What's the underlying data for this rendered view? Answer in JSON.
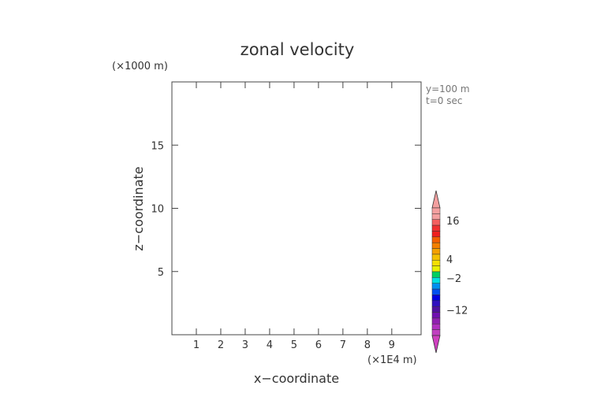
{
  "chart_data": {
    "type": "heatmap",
    "title": "zonal velocity",
    "xlabel": "x−coordinate",
    "ylabel": "z−coordinate",
    "x_unit": "(×1E4 m)",
    "y_unit": "(×1000 m)",
    "xlim": [
      0,
      10.2
    ],
    "ylim": [
      0,
      20.0
    ],
    "x_ticks": [
      1,
      2,
      3,
      4,
      5,
      6,
      7,
      8,
      9
    ],
    "y_ticks": [
      5,
      10,
      15
    ],
    "annotations": [
      "y=100 m",
      "t=0 sec"
    ],
    "colorbar": {
      "labels": [
        {
          "value": 16,
          "text": "16"
        },
        {
          "value": 4,
          "text": "4"
        },
        {
          "value": -2,
          "text": "−2"
        },
        {
          "value": -12,
          "text": "−12"
        }
      ],
      "top_color": "#f4a0a0",
      "bottom_color": "#d040c0",
      "segments": [
        {
          "color": "#f4a0a0"
        },
        {
          "color": "#f4a0a0"
        },
        {
          "color": "#f46060"
        },
        {
          "color": "#f03030"
        },
        {
          "color": "#f02020"
        },
        {
          "color": "#f46000"
        },
        {
          "color": "#f48000"
        },
        {
          "color": "#f4a000"
        },
        {
          "color": "#f4c000"
        },
        {
          "color": "#f4e000"
        },
        {
          "color": "#e8f000"
        },
        {
          "color": "#00d060"
        },
        {
          "color": "#00e0e0"
        },
        {
          "color": "#0090f0"
        },
        {
          "color": "#0050f0"
        },
        {
          "color": "#0000e0"
        },
        {
          "color": "#3010c0"
        },
        {
          "color": "#5010a0"
        },
        {
          "color": "#7010b0"
        },
        {
          "color": "#9020b0"
        },
        {
          "color": "#b030c0"
        },
        {
          "color": "#c040c0"
        }
      ]
    },
    "series": []
  }
}
